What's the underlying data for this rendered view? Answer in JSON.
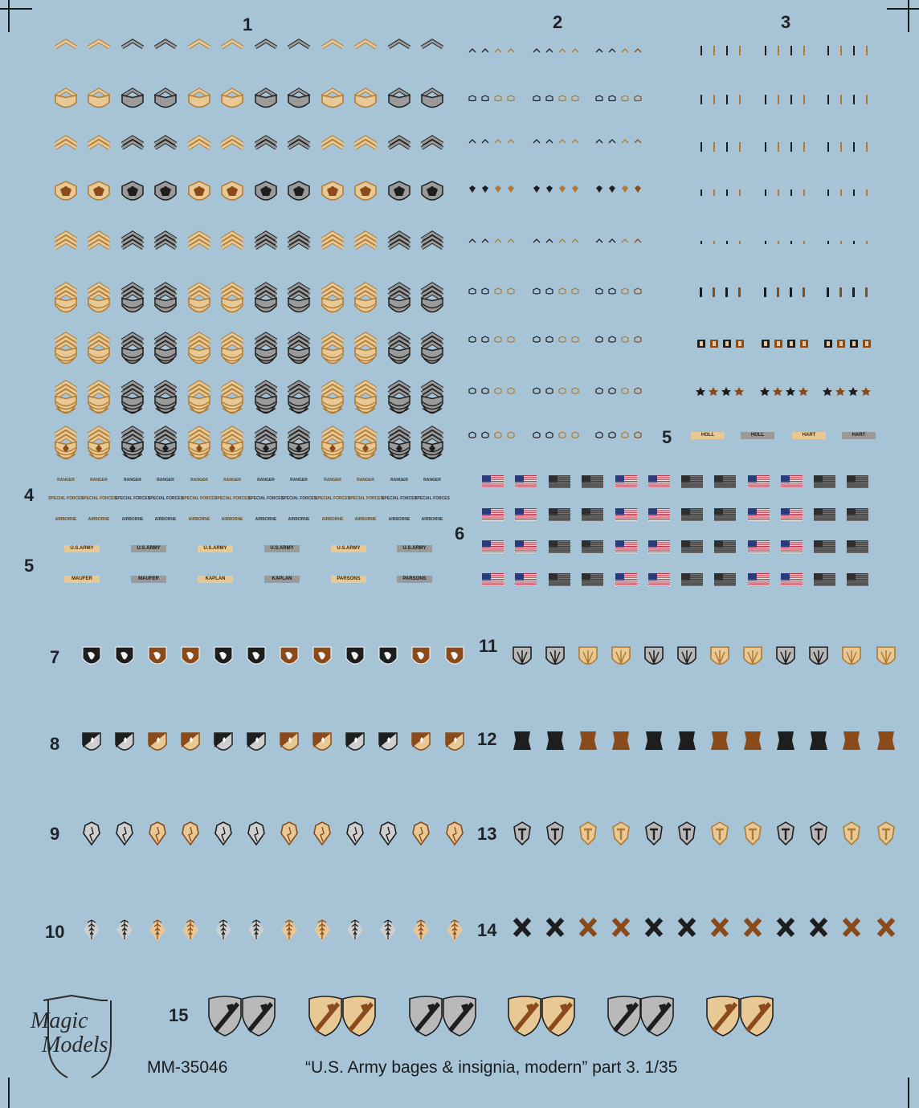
{
  "section_numbers": {
    "s1": "1",
    "s2": "2",
    "s3": "3",
    "s4": "4",
    "s5a": "5",
    "s5b": "5",
    "s6": "6",
    "s7": "7",
    "s8": "8",
    "s9": "9",
    "s10": "10",
    "s11": "11",
    "s12": "12",
    "s13": "13",
    "s14": "14",
    "s15": "15"
  },
  "rank_rows": [
    "pvt-chevron",
    "pfc-chevron",
    "cpl-chevron",
    "spc-eagle",
    "sgt-chevron",
    "ssg-chevron",
    "sfc-chevron",
    "msg-chevron",
    "1sg-chevron"
  ],
  "tabs_row1": [
    "RANGER",
    "RANGER",
    "RANGER",
    "RANGER",
    "RANGER",
    "RANGER",
    "RANGER",
    "RANGER",
    "RANGER",
    "RANGER",
    "RANGER",
    "RANGER"
  ],
  "tabs_row2": [
    "SPECIAL FORCES",
    "SPECIAL FORCES",
    "SPECIAL FORCES",
    "SPECIAL FORCES",
    "SPECIAL FORCES",
    "SPECIAL FORCES",
    "SPECIAL FORCES",
    "SPECIAL FORCES",
    "SPECIAL FORCES",
    "SPECIAL FORCES",
    "SPECIAL FORCES",
    "SPECIAL FORCES"
  ],
  "tabs_row3": [
    "AIRBORNE",
    "AIRBORNE",
    "AIRBORNE",
    "AIRBORNE",
    "AIRBORNE",
    "AIRBORNE",
    "AIRBORNE",
    "AIRBORNE",
    "AIRBORNE",
    "AIRBORNE",
    "AIRBORNE",
    "AIRBORNE"
  ],
  "army_tapes": [
    "U.S.ARMY",
    "U.S.ARMY",
    "U.S.ARMY",
    "U.S.ARMY",
    "U.S.ARMY",
    "U.S.ARMY"
  ],
  "name_tapes": [
    "MAUFER",
    "MAUFER",
    "KAPLAN",
    "KAPLAN",
    "PARSONS",
    "PARSONS"
  ],
  "name_tapes_small": [
    "HOLL",
    "HOLL",
    "HART",
    "HART"
  ],
  "footer": {
    "code": "MM-35046",
    "title": "“U.S. Army bages & insignia, modern” part 3. 1/35"
  },
  "logo": {
    "line1": "Magic",
    "line2": "Models"
  },
  "colors": {
    "background": "#a6c4d6",
    "tan": "#e8c996",
    "tan_stroke": "#b07a30",
    "black": "#1e1e1e",
    "grey": "#9a9a9a",
    "brown": "#8a4a1a",
    "flag_red": "#c8283c",
    "flag_blue": "#2a3a7a"
  }
}
